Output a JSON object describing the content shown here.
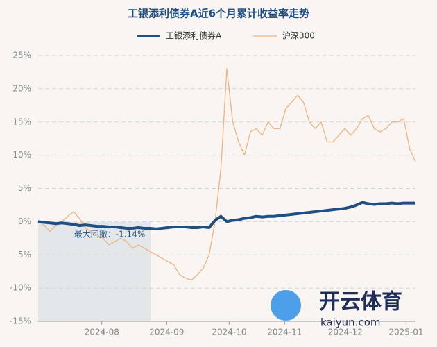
{
  "chart_data": {
    "type": "line",
    "title": "工银添利债券A近6个月累计收益率走势",
    "annotation": "最大回撤：-1.14%",
    "watermark": [
      "开云体育",
      "kaiyun.com"
    ],
    "x": [
      0,
      1,
      2,
      3,
      4,
      5,
      6,
      7,
      8,
      9,
      10,
      11,
      12,
      13,
      14,
      15,
      16,
      17,
      18,
      19,
      20,
      21,
      22,
      23,
      24,
      25,
      26,
      27,
      28,
      29,
      30,
      31,
      32,
      33,
      34,
      35,
      36,
      37,
      38,
      39,
      40,
      41,
      42,
      43,
      44,
      45,
      46,
      47,
      48,
      49,
      50,
      51,
      52,
      53,
      54,
      55,
      56,
      57,
      58,
      59,
      60,
      61,
      62,
      63,
      64
    ],
    "xlim": [
      0,
      64
    ],
    "xticks": [
      {
        "value": 10.8,
        "label": "2024-08"
      },
      {
        "value": 21.8,
        "label": "2024-09"
      },
      {
        "value": 32.4,
        "label": "2024-10"
      },
      {
        "value": 41.8,
        "label": "2024-11"
      },
      {
        "value": 52.1,
        "label": "2024-12"
      },
      {
        "value": 62.4,
        "label": "2025-01"
      }
    ],
    "ylim": [
      -15,
      25
    ],
    "yticks": [
      {
        "value": 25,
        "label": "25%"
      },
      {
        "value": 20,
        "label": "20%"
      },
      {
        "value": 15,
        "label": "15%"
      },
      {
        "value": 10,
        "label": "10%"
      },
      {
        "value": 5,
        "label": "5%"
      },
      {
        "value": 0,
        "label": "0%"
      },
      {
        "value": -5,
        "label": "-5%"
      },
      {
        "value": -10,
        "label": "-10%"
      },
      {
        "value": -15,
        "label": "-15%"
      }
    ],
    "grid": true,
    "series": [
      {
        "name": "工银添利债券A",
        "color": "#1f4e84",
        "width": 4,
        "values": [
          0,
          -0.1,
          -0.2,
          -0.3,
          -0.2,
          -0.3,
          -0.4,
          -0.6,
          -0.5,
          -0.6,
          -0.7,
          -0.7,
          -0.8,
          -0.8,
          -0.9,
          -1.0,
          -1.0,
          -0.9,
          -1.0,
          -1.0,
          -1.1,
          -1.0,
          -0.9,
          -0.8,
          -0.8,
          -0.8,
          -0.9,
          -0.9,
          -0.8,
          -0.9,
          0.2,
          0.8,
          0.0,
          0.2,
          0.3,
          0.5,
          0.6,
          0.8,
          0.7,
          0.8,
          0.8,
          0.9,
          1.0,
          1.1,
          1.2,
          1.3,
          1.4,
          1.5,
          1.6,
          1.7,
          1.8,
          1.9,
          2.0,
          2.2,
          2.5,
          2.9,
          2.7,
          2.6,
          2.7,
          2.7,
          2.8,
          2.7,
          2.8,
          2.8,
          2.8
        ]
      },
      {
        "name": "沪深300",
        "color": "#f2b27a",
        "width": 1.3,
        "values": [
          0,
          -0.5,
          -1.5,
          -0.5,
          0,
          0.8,
          1.5,
          0.5,
          -1,
          -1.5,
          -2,
          -2.5,
          -3.5,
          -3,
          -2.5,
          -3,
          -4,
          -3.5,
          -4,
          -4.5,
          -5,
          -5.5,
          -6,
          -6.5,
          -8,
          -8.5,
          -8.8,
          -8,
          -7,
          -5,
          0,
          8,
          23,
          15,
          12,
          10,
          13.5,
          14,
          13,
          15,
          14,
          14,
          17,
          18,
          19,
          18,
          15,
          14,
          15,
          12,
          12,
          13,
          14,
          13,
          14,
          15.5,
          16,
          14,
          13.5,
          14,
          15,
          15,
          15.5,
          11,
          9
        ]
      }
    ]
  }
}
